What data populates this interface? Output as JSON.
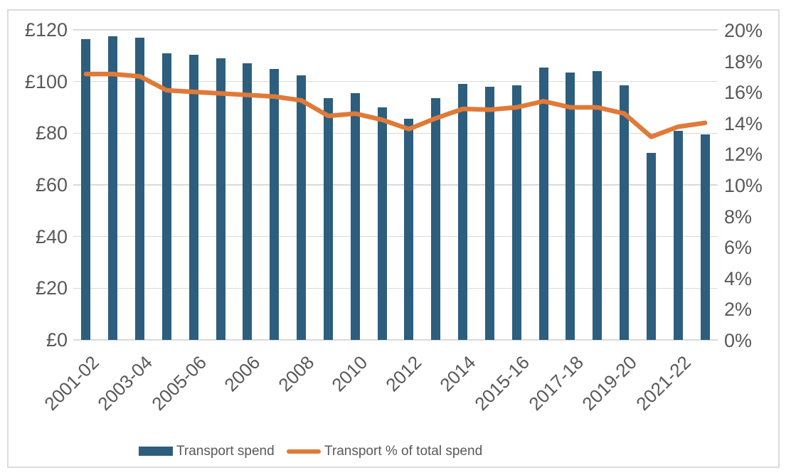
{
  "chart_data": {
    "type": "bar+line",
    "title": "",
    "x_tick_labels": [
      "2001-02",
      "",
      "2003-04",
      "",
      "2005-06",
      "",
      "2006",
      "",
      "2008",
      "",
      "2010",
      "",
      "2012",
      "",
      "2014",
      "",
      "2015-16",
      "",
      "2017-18",
      "",
      "2019-20",
      "",
      "2021-22",
      ""
    ],
    "series": [
      {
        "name": "Transport spend",
        "type": "bar",
        "axis": "left",
        "unit": "£",
        "values": [
          116.5,
          117.5,
          117,
          111,
          110.5,
          109,
          107,
          105,
          102.5,
          93.5,
          95.5,
          90,
          85.5,
          93.5,
          99,
          98,
          98.5,
          105.5,
          103.5,
          104,
          98.5,
          72.5,
          81,
          79.5
        ]
      },
      {
        "name": "Transport % of total spend",
        "type": "line",
        "axis": "right",
        "unit": "%",
        "values": [
          17.15,
          17.15,
          17.0,
          16.1,
          16.0,
          15.9,
          15.8,
          15.7,
          15.45,
          14.45,
          14.6,
          14.2,
          13.6,
          14.3,
          14.9,
          14.85,
          15.0,
          15.4,
          15.0,
          15.0,
          14.6,
          13.1,
          13.75,
          14.0
        ]
      }
    ],
    "left_axis": {
      "min": 0,
      "max": 120,
      "step": 20,
      "labels": [
        "£0",
        "£20",
        "£40",
        "£60",
        "£80",
        "£100",
        "£120"
      ]
    },
    "right_axis": {
      "min": 0,
      "max": 20,
      "step": 2,
      "labels": [
        "0%",
        "2%",
        "4%",
        "6%",
        "8%",
        "10%",
        "12%",
        "14%",
        "16%",
        "18%",
        "20%"
      ]
    },
    "grid": {
      "horizontal": true,
      "vertical": false,
      "interval": "every £20"
    },
    "legend_position": "bottom"
  },
  "colors": {
    "bar": "#2d5e7d",
    "line": "#e07a38",
    "grid": "#dadada",
    "axis_text": "#595959",
    "border": "#dcdcdc",
    "background": "#ffffff"
  }
}
